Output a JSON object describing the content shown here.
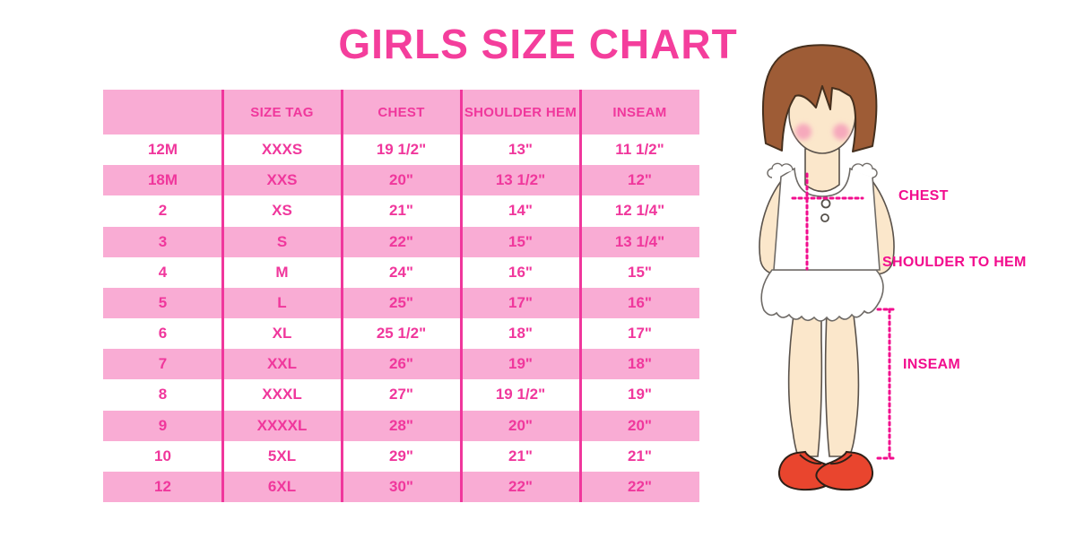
{
  "title": "GIRLS SIZE CHART",
  "chart_data": {
    "type": "table",
    "title": "GIRLS SIZE CHART",
    "headers": [
      "",
      "SIZE TAG",
      "CHEST",
      "SHOULDER HEM",
      "INSEAM"
    ],
    "rows": [
      [
        "12M",
        "XXXS",
        "19 1/2\"",
        "13\"",
        "11 1/2\""
      ],
      [
        "18M",
        "XXS",
        "20\"",
        "13 1/2\"",
        "12\""
      ],
      [
        "2",
        "XS",
        "21\"",
        "14\"",
        "12 1/4\""
      ],
      [
        "3",
        "S",
        "22\"",
        "15\"",
        "13 1/4\""
      ],
      [
        "4",
        "M",
        "24\"",
        "16\"",
        "15\""
      ],
      [
        "5",
        "L",
        "25\"",
        "17\"",
        "16\""
      ],
      [
        "6",
        "XL",
        "25 1/2\"",
        "18\"",
        "17\""
      ],
      [
        "7",
        "XXL",
        "26\"",
        "19\"",
        "18\""
      ],
      [
        "8",
        "XXXL",
        "27\"",
        "19 1/2\"",
        "19\""
      ],
      [
        "9",
        "XXXXL",
        "28\"",
        "20\"",
        "20\""
      ],
      [
        "10",
        "5XL",
        "29\"",
        "21\"",
        "21\""
      ],
      [
        "12",
        "6XL",
        "30\"",
        "22\"",
        "22\""
      ]
    ],
    "layout": {
      "row_stripes": [
        "white",
        "pink"
      ],
      "grid": "vertical-dividers-only"
    }
  },
  "figure": {
    "labels": {
      "chest": "CHEST",
      "shoulder_to_hem": "SHOULDER TO HEM",
      "inseam": "INSEAM"
    }
  },
  "palette": {
    "row_pink": "#F9ACD4",
    "table_text_pink": "#F0379C",
    "title_pink": "#F43E9C",
    "measure_magenta": "#F20D8E",
    "hair_brown": "#9E5C36",
    "skin": "#FBE7CB",
    "cheek": "#F6A9BC",
    "shoe_red": "#E9452E",
    "garment_white": "#FFFFFF"
  }
}
